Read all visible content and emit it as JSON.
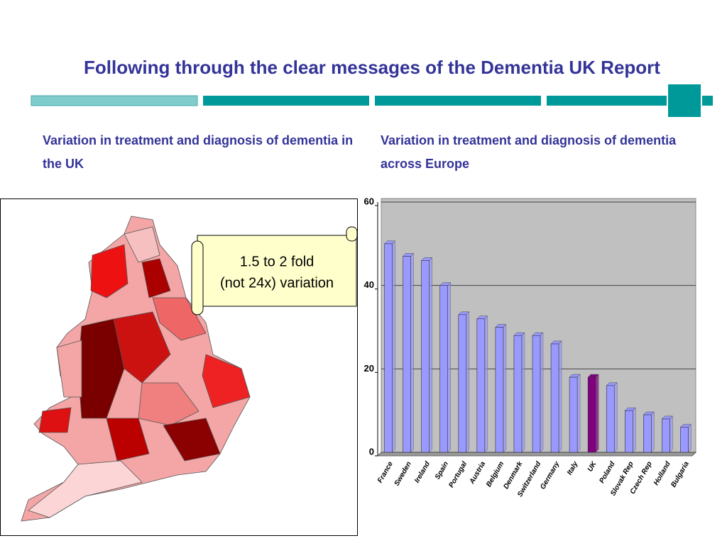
{
  "header": {
    "title": "Following through the clear messages of the Dementia UK Report"
  },
  "left": {
    "heading": "Variation in treatment and diagnosis of dementia in the UK",
    "callout": [
      "1.5 to 2 fold",
      "(not 24x) variation"
    ]
  },
  "right": {
    "heading": "Variation in treatment and diagnosis of dementia across Europe"
  },
  "chart_data": {
    "type": "bar",
    "categories": [
      "France",
      "Sweden",
      "Ireland",
      "Spain",
      "Portugal",
      "Austria",
      "Belgium",
      "Denmark",
      "Switzerland",
      "Germany",
      "Italy",
      "UK",
      "Poland",
      "Slovak Rep",
      "Czech Rep",
      "Holland",
      "Bulgaria"
    ],
    "values": [
      50,
      47,
      46,
      40,
      33,
      32,
      30,
      28,
      28,
      26,
      18,
      18,
      16,
      10,
      9,
      8,
      6
    ],
    "colors": [
      "#9999ff",
      "#9999ff",
      "#9999ff",
      "#9999ff",
      "#9999ff",
      "#9999ff",
      "#9999ff",
      "#9999ff",
      "#9999ff",
      "#9999ff",
      "#9999ff",
      "#800080",
      "#9999ff",
      "#9999ff",
      "#9999ff",
      "#9999ff",
      "#9999ff"
    ],
    "ylim": [
      0,
      60
    ],
    "yticks": [
      0,
      20,
      40,
      60
    ],
    "grid": true
  }
}
